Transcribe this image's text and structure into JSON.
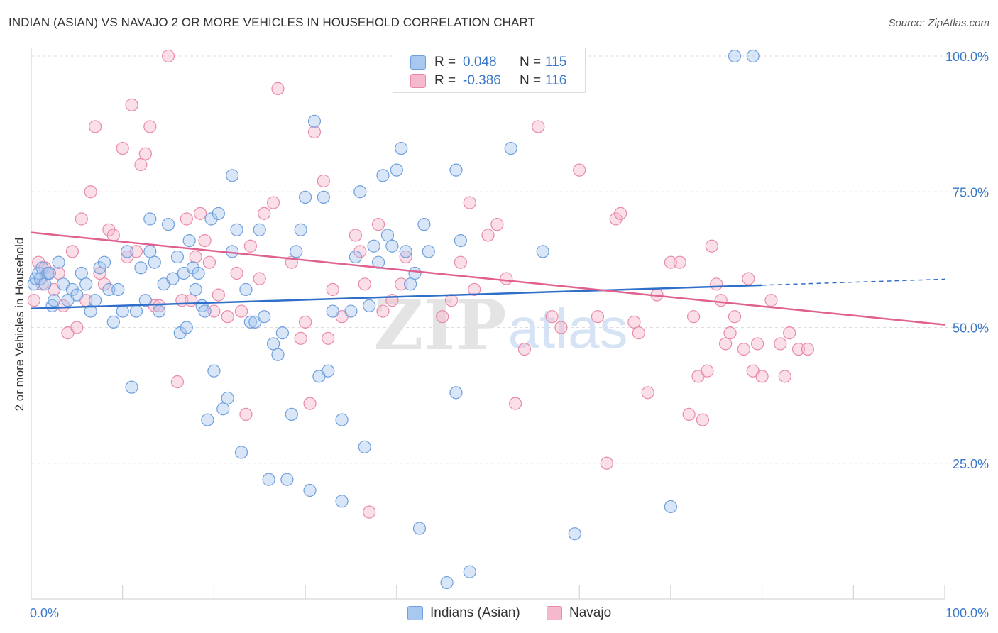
{
  "title": "INDIAN (ASIAN) VS NAVAJO 2 OR MORE VEHICLES IN HOUSEHOLD CORRELATION CHART",
  "source": "Source: ZipAtlas.com",
  "watermark": {
    "zip": "ZIP",
    "atlas": "atlas"
  },
  "colors": {
    "blue_fill": "#a9c8f0",
    "blue_stroke": "#6f9fdc",
    "blue_line": "#2f6fc9",
    "pink_fill": "#f6b8cc",
    "pink_stroke": "#e98aa9",
    "pink_line": "#e0608f",
    "axis_text": "#3a78c9",
    "grid": "#dddddd"
  },
  "legend": {
    "rows": [
      {
        "r_label": "R =",
        "r_value": "0.048",
        "n_label": "N =",
        "n_value": "115",
        "color": "blue"
      },
      {
        "r_label": "R =",
        "r_value": "-0.386",
        "n_label": "N =",
        "n_value": "116",
        "color": "pink"
      }
    ]
  },
  "bottom_legend": [
    {
      "label": "Indians (Asian)",
      "color": "blue"
    },
    {
      "label": "Navajo",
      "color": "pink"
    }
  ],
  "chart_data": {
    "type": "scatter",
    "title": "INDIAN (ASIAN) VS NAVAJO 2 OR MORE VEHICLES IN HOUSEHOLD CORRELATION CHART",
    "xlabel": "",
    "ylabel": "2 or more Vehicles in Household",
    "xlim": [
      0,
      100
    ],
    "ylim": [
      0,
      105
    ],
    "x_tick_labels": [
      {
        "value": 0,
        "label": "0.0%"
      },
      {
        "value": 100,
        "label": "100.0%"
      }
    ],
    "y_tick_labels": [
      {
        "value": 25,
        "label": "25.0%"
      },
      {
        "value": 50,
        "label": "50.0%"
      },
      {
        "value": 75,
        "label": "75.0%"
      },
      {
        "value": 100,
        "label": "100.0%"
      }
    ],
    "grid": "horizontal dashed",
    "legend_placement": "top-center",
    "series": [
      {
        "name": "Indians (Asian)",
        "color": "blue",
        "trend": {
          "x": [
            0,
            80
          ],
          "y": [
            53.5,
            57.8
          ],
          "dashed_to": [
            100,
            58.9
          ]
        },
        "points": [
          [
            0.3,
            58
          ],
          [
            0.5,
            59
          ],
          [
            0.8,
            60
          ],
          [
            1,
            59
          ],
          [
            1.2,
            61
          ],
          [
            1.5,
            58
          ],
          [
            1.8,
            60
          ],
          [
            2,
            60
          ],
          [
            2.3,
            54
          ],
          [
            2.5,
            55
          ],
          [
            3,
            62
          ],
          [
            3.5,
            58
          ],
          [
            4,
            55
          ],
          [
            4.5,
            57
          ],
          [
            5,
            56
          ],
          [
            5.5,
            60
          ],
          [
            6,
            58
          ],
          [
            6.5,
            53
          ],
          [
            7,
            55
          ],
          [
            7.5,
            61
          ],
          [
            8,
            62
          ],
          [
            8.5,
            57
          ],
          [
            9,
            51
          ],
          [
            9.5,
            57
          ],
          [
            10,
            53
          ],
          [
            10.5,
            64
          ],
          [
            11,
            39
          ],
          [
            11.5,
            53
          ],
          [
            12,
            61
          ],
          [
            12.5,
            55
          ],
          [
            13,
            64
          ],
          [
            13,
            70
          ],
          [
            13.5,
            62
          ],
          [
            14,
            53
          ],
          [
            14.5,
            58
          ],
          [
            15,
            69
          ],
          [
            15.5,
            59
          ],
          [
            16,
            63
          ],
          [
            16.3,
            49
          ],
          [
            16.7,
            60
          ],
          [
            17,
            50
          ],
          [
            17.3,
            66
          ],
          [
            17.7,
            61
          ],
          [
            18,
            57
          ],
          [
            18.3,
            60
          ],
          [
            18.7,
            54
          ],
          [
            19,
            53
          ],
          [
            19.3,
            33
          ],
          [
            19.7,
            70
          ],
          [
            20,
            42
          ],
          [
            20.5,
            71
          ],
          [
            21,
            35
          ],
          [
            21.5,
            37
          ],
          [
            22,
            64
          ],
          [
            22,
            78
          ],
          [
            22.5,
            68
          ],
          [
            23,
            27
          ],
          [
            23.5,
            57
          ],
          [
            24,
            51
          ],
          [
            24.5,
            51
          ],
          [
            25,
            68
          ],
          [
            25.5,
            52
          ],
          [
            26,
            22
          ],
          [
            26.5,
            47
          ],
          [
            27,
            45
          ],
          [
            27.5,
            49
          ],
          [
            28,
            22
          ],
          [
            28.5,
            34
          ],
          [
            29,
            64
          ],
          [
            29.5,
            68
          ],
          [
            30,
            74
          ],
          [
            30.5,
            20
          ],
          [
            31,
            88
          ],
          [
            31.5,
            41
          ],
          [
            32,
            74
          ],
          [
            32.5,
            42
          ],
          [
            33,
            53
          ],
          [
            34,
            18
          ],
          [
            34,
            33
          ],
          [
            35,
            53
          ],
          [
            35.5,
            63
          ],
          [
            36,
            75
          ],
          [
            36.5,
            28
          ],
          [
            37,
            54
          ],
          [
            37.5,
            65
          ],
          [
            38,
            62
          ],
          [
            38.5,
            78
          ],
          [
            39,
            67
          ],
          [
            39.5,
            65
          ],
          [
            40,
            79
          ],
          [
            40.5,
            83
          ],
          [
            41,
            64
          ],
          [
            41.5,
            58
          ],
          [
            42,
            60
          ],
          [
            42.5,
            13
          ],
          [
            43,
            69
          ],
          [
            43.5,
            64
          ],
          [
            45.5,
            3
          ],
          [
            46.5,
            79
          ],
          [
            46.5,
            38
          ],
          [
            47,
            66
          ],
          [
            48,
            5
          ],
          [
            48.5,
            95
          ],
          [
            52.5,
            83
          ],
          [
            56,
            64
          ],
          [
            59.5,
            12
          ],
          [
            70,
            17
          ],
          [
            77,
            100
          ],
          [
            79,
            100
          ]
        ]
      },
      {
        "name": "Navajo",
        "color": "pink",
        "trend": {
          "x": [
            0,
            100
          ],
          "y": [
            67.5,
            50.5
          ]
        },
        "points": [
          [
            0.3,
            55
          ],
          [
            0.8,
            62
          ],
          [
            1.2,
            58
          ],
          [
            1.5,
            61
          ],
          [
            2,
            60
          ],
          [
            2.5,
            57
          ],
          [
            3,
            60
          ],
          [
            3.5,
            54
          ],
          [
            4,
            49
          ],
          [
            4.5,
            64
          ],
          [
            5,
            50
          ],
          [
            5.5,
            70
          ],
          [
            6,
            55
          ],
          [
            6.5,
            75
          ],
          [
            7,
            87
          ],
          [
            7.5,
            60
          ],
          [
            8,
            58
          ],
          [
            8.5,
            68
          ],
          [
            9,
            67
          ],
          [
            10,
            83
          ],
          [
            10.5,
            63
          ],
          [
            11,
            91
          ],
          [
            11.5,
            64
          ],
          [
            12,
            80
          ],
          [
            12.5,
            82
          ],
          [
            13,
            87
          ],
          [
            13.5,
            54
          ],
          [
            14,
            54
          ],
          [
            15,
            100
          ],
          [
            16,
            40
          ],
          [
            16.5,
            55
          ],
          [
            17,
            70
          ],
          [
            17.5,
            55
          ],
          [
            18,
            63
          ],
          [
            18.5,
            71
          ],
          [
            19,
            66
          ],
          [
            19.5,
            62
          ],
          [
            20,
            53
          ],
          [
            20.5,
            56
          ],
          [
            21.5,
            52
          ],
          [
            22.5,
            60
          ],
          [
            23,
            53
          ],
          [
            23.5,
            34
          ],
          [
            24,
            65
          ],
          [
            25,
            59
          ],
          [
            25.5,
            71
          ],
          [
            26.5,
            73
          ],
          [
            27,
            94
          ],
          [
            28.5,
            62
          ],
          [
            29.5,
            48
          ],
          [
            30,
            51
          ],
          [
            30.5,
            36
          ],
          [
            31,
            86
          ],
          [
            32,
            77
          ],
          [
            32.5,
            48
          ],
          [
            33,
            57
          ],
          [
            34,
            52
          ],
          [
            35.5,
            67
          ],
          [
            36,
            64
          ],
          [
            36.5,
            58
          ],
          [
            37,
            16
          ],
          [
            38,
            69
          ],
          [
            38.5,
            53
          ],
          [
            39.5,
            55
          ],
          [
            40.5,
            58
          ],
          [
            41,
            63
          ],
          [
            43,
            100
          ],
          [
            45,
            52
          ],
          [
            46,
            55
          ],
          [
            47,
            62
          ],
          [
            48,
            73
          ],
          [
            48.5,
            57
          ],
          [
            50,
            67
          ],
          [
            51,
            69
          ],
          [
            52,
            59
          ],
          [
            53,
            36
          ],
          [
            54,
            46
          ],
          [
            55.5,
            87
          ],
          [
            57,
            52
          ],
          [
            58,
            50
          ],
          [
            60,
            79
          ],
          [
            62,
            52
          ],
          [
            63,
            25
          ],
          [
            64,
            70
          ],
          [
            64.5,
            71
          ],
          [
            66,
            51
          ],
          [
            66.5,
            49
          ],
          [
            67.5,
            38
          ],
          [
            68.5,
            56
          ],
          [
            70,
            62
          ],
          [
            71,
            62
          ],
          [
            72,
            34
          ],
          [
            72.5,
            52
          ],
          [
            73,
            41
          ],
          [
            73.5,
            33
          ],
          [
            74,
            42
          ],
          [
            74.5,
            65
          ],
          [
            75,
            58
          ],
          [
            75.5,
            55
          ],
          [
            76,
            47
          ],
          [
            76.5,
            49
          ],
          [
            77,
            52
          ],
          [
            78,
            46
          ],
          [
            78.5,
            59
          ],
          [
            79,
            42
          ],
          [
            79.5,
            47
          ],
          [
            80,
            41
          ],
          [
            81,
            55
          ],
          [
            82,
            47
          ],
          [
            82.5,
            41
          ],
          [
            83,
            49
          ],
          [
            84,
            46
          ],
          [
            85,
            46
          ]
        ]
      }
    ]
  }
}
